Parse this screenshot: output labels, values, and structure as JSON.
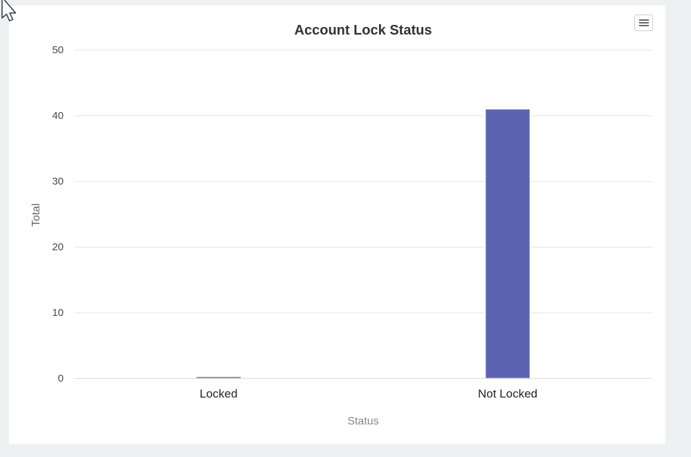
{
  "page": {
    "background_color": "#edf1f2",
    "card_background_color": "#ffffff"
  },
  "toolbar": {
    "context_menu_icon": "hamburger-menu-icon"
  },
  "cursor": {
    "icon": "mouse-arrow-pointer"
  },
  "chart_data": {
    "type": "bar",
    "title": "Account Lock Status",
    "categories": [
      "Locked",
      "Not Locked"
    ],
    "values": [
      0,
      41
    ],
    "xlabel": "Status",
    "ylabel": "Total",
    "ylim": [
      0,
      50
    ],
    "yticks": [
      0,
      10,
      20,
      30,
      40,
      50
    ],
    "grid": true,
    "legend": "none",
    "colors": {
      "bar_fill": "#5c63b1",
      "bar_border": "#9096ce",
      "gridline": "#e6e6e6",
      "axis_line": "#dcdcdc",
      "tick_label": "#49494d",
      "category_label": "#222222",
      "axis_title": "#878787",
      "title": "#333333"
    }
  }
}
